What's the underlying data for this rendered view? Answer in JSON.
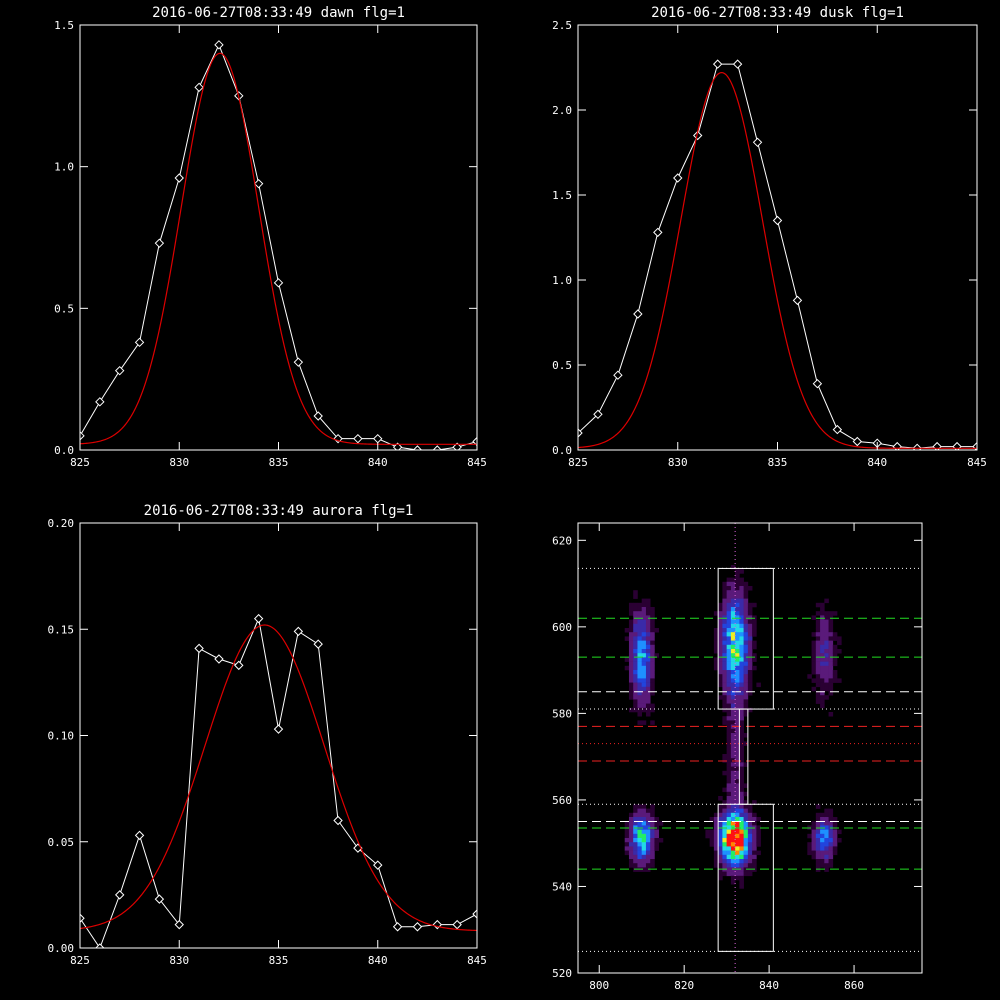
{
  "chart_data": [
    {
      "type": "line",
      "title": "2016-06-27T08:33:49 dawn flg=1",
      "xlim": [
        825,
        845
      ],
      "ylim": [
        0,
        1.5
      ],
      "xticks": [
        "825",
        "830",
        "835",
        "840",
        "845"
      ],
      "yticks": [
        "0.0",
        "0.5",
        "1.0",
        "1.5"
      ],
      "grid": false,
      "series": [
        {
          "style": "data",
          "color": "#ffffff",
          "x": [
            825,
            826,
            827,
            828,
            829,
            830,
            831,
            832,
            833,
            834,
            835,
            836,
            837,
            838,
            839,
            840,
            841,
            842,
            843,
            844,
            845
          ],
          "y": [
            0.05,
            0.17,
            0.28,
            0.38,
            0.73,
            0.96,
            1.28,
            1.43,
            1.25,
            0.94,
            0.59,
            0.31,
            0.12,
            0.04,
            0.04,
            0.04,
            0.01,
            0.0,
            0.0,
            0.01,
            0.03
          ]
        },
        {
          "style": "fit",
          "color": "#dd0000",
          "gaussian": {
            "amplitude": 1.38,
            "center": 832.05,
            "sigma": 1.95,
            "baseline": 0.02
          }
        }
      ]
    },
    {
      "type": "line",
      "title": "2016-06-27T08:33:49 dusk flg=1",
      "xlim": [
        825,
        845
      ],
      "ylim": [
        0,
        2.5
      ],
      "xticks": [
        "825",
        "830",
        "835",
        "840",
        "845"
      ],
      "yticks": [
        "0.0",
        "0.5",
        "1.0",
        "1.5",
        "2.0",
        "2.5"
      ],
      "grid": false,
      "series": [
        {
          "style": "data",
          "color": "#ffffff",
          "x": [
            825,
            826,
            827,
            828,
            829,
            830,
            831,
            832,
            833,
            834,
            835,
            836,
            837,
            838,
            839,
            840,
            841,
            842,
            843,
            844,
            845
          ],
          "y": [
            0.1,
            0.21,
            0.44,
            0.8,
            1.28,
            1.6,
            1.85,
            2.27,
            2.27,
            1.81,
            1.35,
            0.88,
            0.39,
            0.12,
            0.05,
            0.04,
            0.02,
            0.01,
            0.02,
            0.02,
            0.02
          ]
        },
        {
          "style": "fit",
          "color": "#dd0000",
          "gaussian": {
            "amplitude": 2.21,
            "center": 832.2,
            "sigma": 2.05,
            "baseline": 0.01
          }
        }
      ]
    },
    {
      "type": "line",
      "title": "2016-06-27T08:33:49 aurora flg=1",
      "xlim": [
        825,
        845
      ],
      "ylim": [
        0,
        0.2
      ],
      "xticks": [
        "825",
        "830",
        "835",
        "840",
        "845"
      ],
      "yticks": [
        "0.00",
        "0.05",
        "0.10",
        "0.15",
        "0.20"
      ],
      "grid": false,
      "series": [
        {
          "style": "data",
          "color": "#ffffff",
          "x": [
            825,
            826,
            827,
            828,
            829,
            830,
            831,
            832,
            833,
            834,
            835,
            836,
            837,
            838,
            839,
            840,
            841,
            842,
            843,
            844,
            845
          ],
          "y": [
            0.014,
            0.0,
            0.025,
            0.053,
            0.023,
            0.011,
            0.141,
            0.136,
            0.133,
            0.155,
            0.103,
            0.149,
            0.143,
            0.06,
            0.047,
            0.039,
            0.01,
            0.01,
            0.011,
            0.011,
            0.016
          ]
        },
        {
          "style": "fit",
          "color": "#dd0000",
          "gaussian": {
            "amplitude": 0.144,
            "center": 834.3,
            "sigma": 3.0,
            "baseline": 0.008
          }
        }
      ]
    },
    {
      "type": "heatmap",
      "title": "",
      "xlim": [
        795,
        876
      ],
      "ylim": [
        520,
        624
      ],
      "xticks": [
        "800",
        "820",
        "840",
        "860"
      ],
      "yticks": [
        "520",
        "540",
        "560",
        "580",
        "600",
        "620"
      ],
      "grid": false,
      "blobs": [
        {
          "x": 810,
          "y": 593,
          "sx": 1.6,
          "sy": 6.5,
          "peak": 0.45
        },
        {
          "x": 810,
          "y": 551,
          "sx": 1.8,
          "sy": 3.5,
          "peak": 0.55
        },
        {
          "x": 832,
          "y": 596,
          "sx": 2.0,
          "sy": 7.0,
          "peak": 0.62
        },
        {
          "x": 832,
          "y": 551,
          "sx": 2.3,
          "sy": 3.8,
          "peak": 1.0
        },
        {
          "x": 853,
          "y": 551,
          "sx": 1.6,
          "sy": 3.0,
          "peak": 0.4
        },
        {
          "x": 853,
          "y": 594,
          "sx": 1.6,
          "sy": 6.0,
          "peak": 0.2
        },
        {
          "x": 832,
          "y": 570,
          "sx": 1.4,
          "sy": 14.0,
          "peak": 0.12
        }
      ],
      "hlines": [
        {
          "y": 613.5,
          "color": "#ffffff",
          "style": "dotted"
        },
        {
          "y": 602,
          "color": "#22dd22",
          "style": "dashed"
        },
        {
          "y": 593,
          "color": "#22dd22",
          "style": "dashed"
        },
        {
          "y": 585,
          "color": "#ffffff",
          "style": "dashed"
        },
        {
          "y": 581,
          "color": "#ffffff",
          "style": "dotted"
        },
        {
          "y": 577,
          "color": "#ee2222",
          "style": "dashed"
        },
        {
          "y": 573,
          "color": "#ee2222",
          "style": "dotted"
        },
        {
          "y": 569,
          "color": "#ee2222",
          "style": "dashed"
        },
        {
          "y": 559,
          "color": "#ffffff",
          "style": "dotted"
        },
        {
          "y": 555,
          "color": "#ffffff",
          "style": "dashed"
        },
        {
          "y": 553.5,
          "color": "#22dd22",
          "style": "dashed"
        },
        {
          "y": 544,
          "color": "#22dd22",
          "style": "dashed"
        },
        {
          "y": 525,
          "color": "#ffffff",
          "style": "dotted"
        }
      ],
      "vline": {
        "x": 832,
        "color": "#dd66dd",
        "style": "dotted"
      },
      "boxes": [
        {
          "x0": 828,
          "x1": 841,
          "y0": 581,
          "y1": 613.5
        },
        {
          "x0": 833,
          "x1": 835,
          "y0": 559,
          "y1": 581
        },
        {
          "x0": 828,
          "x1": 841,
          "y0": 525,
          "y1": 559
        }
      ],
      "colors": {
        "background": "#000000",
        "scale": [
          "#000000",
          "#2a0033",
          "#5a1a7a",
          "#3a2aa8",
          "#2244dd",
          "#1e90ff",
          "#22d8e8",
          "#22ee66",
          "#eeee22",
          "#ff8800",
          "#ff1111"
        ]
      }
    }
  ]
}
